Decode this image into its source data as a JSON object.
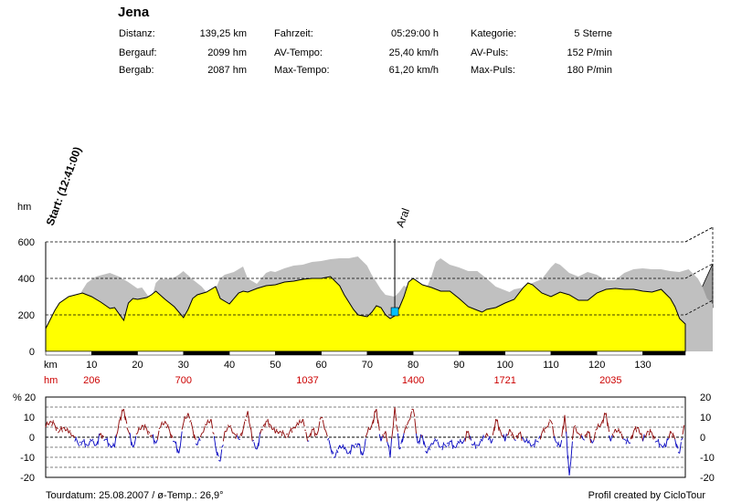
{
  "title": "Jena",
  "stats": {
    "distanz": {
      "label": "Distanz:",
      "value": "139,25 km"
    },
    "bergauf": {
      "label": "Bergauf:",
      "value": "2099 hm"
    },
    "bergab": {
      "label": "Bergab:",
      "value": "2087 hm"
    },
    "fahrzeit": {
      "label": "Fahrzeit:",
      "value": "05:29:00 h"
    },
    "av_tempo": {
      "label": "AV-Tempo:",
      "value": "25,40 km/h"
    },
    "max_tempo": {
      "label": "Max-Tempo:",
      "value": "61,20 km/h"
    },
    "kategorie": {
      "label": "Kategorie:",
      "value": "5 Sterne"
    },
    "av_puls": {
      "label": "AV-Puls:",
      "value": "152 P/min"
    },
    "max_puls": {
      "label": "Max-Puls:",
      "value": "180 P/min"
    }
  },
  "footer": {
    "date": "Tourdatum: 25.08.2007  /  ø-Temp.: 26,9°",
    "credit": "Profil created by CicloTour"
  },
  "chart_data": [
    {
      "type": "area",
      "ylabel": "hm",
      "xlabel": "km",
      "ylim": [
        0,
        600
      ],
      "xlim": [
        0,
        139.25
      ],
      "yticks": [
        0,
        200,
        400,
        600
      ],
      "xticks": [
        10,
        20,
        30,
        40,
        50,
        60,
        70,
        80,
        90,
        100,
        110,
        120,
        130
      ],
      "cumulative_climb_label": "hm",
      "cumulative_climb": [
        {
          "x": 10,
          "value": "206"
        },
        {
          "x": 30,
          "value": "700"
        },
        {
          "x": 57,
          "value": "1037"
        },
        {
          "x": 80,
          "value": "1400"
        },
        {
          "x": 100,
          "value": "1721"
        },
        {
          "x": 123,
          "value": "2035"
        }
      ],
      "annotations": [
        {
          "x": 0,
          "text": "Start: (12:41:00)"
        },
        {
          "x": 76,
          "text": "Aral"
        }
      ],
      "colors": {
        "fill": "#ffff00",
        "shadow": "#c0c0c0",
        "marker": "#00c0ff"
      },
      "elevation": {
        "x": [
          0,
          1,
          2,
          3,
          5,
          8,
          10,
          12,
          14,
          15,
          17,
          18,
          19,
          20,
          22,
          23,
          24,
          26,
          28,
          30,
          31,
          32,
          33,
          35,
          37,
          38,
          40,
          42,
          43,
          44,
          46,
          48,
          50,
          52,
          54,
          56,
          58,
          60,
          62,
          64,
          65,
          66,
          67,
          68,
          70,
          71,
          72,
          73,
          74,
          75,
          76,
          77,
          78,
          79,
          80,
          82,
          84,
          86,
          88,
          90,
          92,
          94,
          95,
          96,
          98,
          100,
          102,
          104,
          105,
          106,
          108,
          110,
          112,
          114,
          116,
          118,
          120,
          122,
          124,
          126,
          128,
          130,
          132,
          134,
          136,
          137,
          138,
          139.25
        ],
        "y": [
          125,
          175,
          225,
          265,
          300,
          320,
          300,
          270,
          235,
          240,
          170,
          265,
          290,
          285,
          295,
          310,
          330,
          285,
          245,
          185,
          230,
          290,
          310,
          325,
          355,
          290,
          260,
          320,
          330,
          325,
          345,
          360,
          365,
          380,
          385,
          395,
          400,
          400,
          410,
          360,
          310,
          270,
          230,
          200,
          190,
          215,
          250,
          240,
          200,
          180,
          195,
          240,
          300,
          380,
          400,
          365,
          350,
          330,
          330,
          290,
          245,
          225,
          215,
          230,
          240,
          265,
          285,
          350,
          375,
          365,
          320,
          300,
          325,
          310,
          280,
          280,
          320,
          340,
          345,
          340,
          340,
          330,
          325,
          340,
          290,
          245,
          180,
          150
        ]
      }
    },
    {
      "type": "line",
      "ylabel": "% 20",
      "ylim": [
        -20,
        20
      ],
      "yticks": [
        -20,
        -10,
        0,
        10,
        20
      ],
      "colors": {
        "positive": "#8b0000",
        "negative": "#0000c0"
      },
      "gradient": {
        "x": [
          0,
          1,
          2,
          3,
          4,
          5,
          6,
          7,
          8,
          9,
          10,
          11,
          12,
          13,
          14,
          15,
          16,
          17,
          18,
          19,
          20,
          21,
          22,
          23,
          24,
          25,
          26,
          27,
          28,
          29,
          30,
          31,
          32,
          33,
          34,
          35,
          36,
          37,
          38,
          39,
          40,
          41,
          42,
          43,
          44,
          45,
          46,
          47,
          48,
          49,
          50,
          51,
          52,
          53,
          54,
          55,
          56,
          57,
          58,
          59,
          60,
          61,
          62,
          63,
          64,
          65,
          66,
          67,
          68,
          69,
          70,
          71,
          72,
          73,
          74,
          75,
          76,
          77,
          78,
          79,
          80,
          81,
          82,
          83,
          84,
          85,
          86,
          87,
          88,
          89,
          90,
          91,
          92,
          93,
          94,
          95,
          96,
          97,
          98,
          99,
          100,
          101,
          102,
          103,
          104,
          105,
          106,
          107,
          108,
          109,
          110,
          111,
          112,
          113,
          114,
          115,
          116,
          117,
          118,
          119,
          120,
          121,
          122,
          123,
          124,
          125,
          126,
          127,
          128,
          129,
          130,
          131,
          132,
          133,
          134,
          135,
          136,
          137,
          138,
          139
        ],
        "y": [
          5,
          8,
          6,
          3,
          5,
          2,
          1,
          -3,
          -2,
          -4,
          -2,
          -4,
          2,
          -1,
          -4,
          -5,
          8,
          14,
          3,
          -5,
          2,
          6,
          4,
          1,
          -3,
          5,
          8,
          3,
          -2,
          -8,
          7,
          12,
          4,
          -4,
          2,
          6,
          9,
          -5,
          -12,
          3,
          5,
          2,
          -1,
          4,
          13,
          -2,
          -6,
          4,
          8,
          6,
          2,
          3,
          1,
          2,
          5,
          6,
          9,
          -2,
          4,
          1,
          10,
          3,
          -5,
          -10,
          -4,
          -6,
          -8,
          -4,
          -3,
          -9,
          2,
          6,
          14,
          -2,
          3,
          -10,
          15,
          -6,
          2,
          8,
          14,
          -3,
          1,
          -8,
          -3,
          -2,
          -5,
          -4,
          -2,
          -5,
          -3,
          -2,
          3,
          -4,
          -4,
          -2,
          2,
          -3,
          9,
          3,
          -2,
          4,
          -1,
          2,
          -1,
          -3,
          -4,
          -2,
          2,
          5,
          8,
          -2,
          -5,
          11,
          -19,
          5,
          2,
          -1,
          3,
          -3,
          4,
          7,
          12,
          -2,
          4,
          2,
          -1,
          -3,
          3,
          5,
          -2,
          3,
          2,
          -2,
          -4,
          -5,
          3,
          -1,
          -8,
          6
        ]
      }
    }
  ]
}
